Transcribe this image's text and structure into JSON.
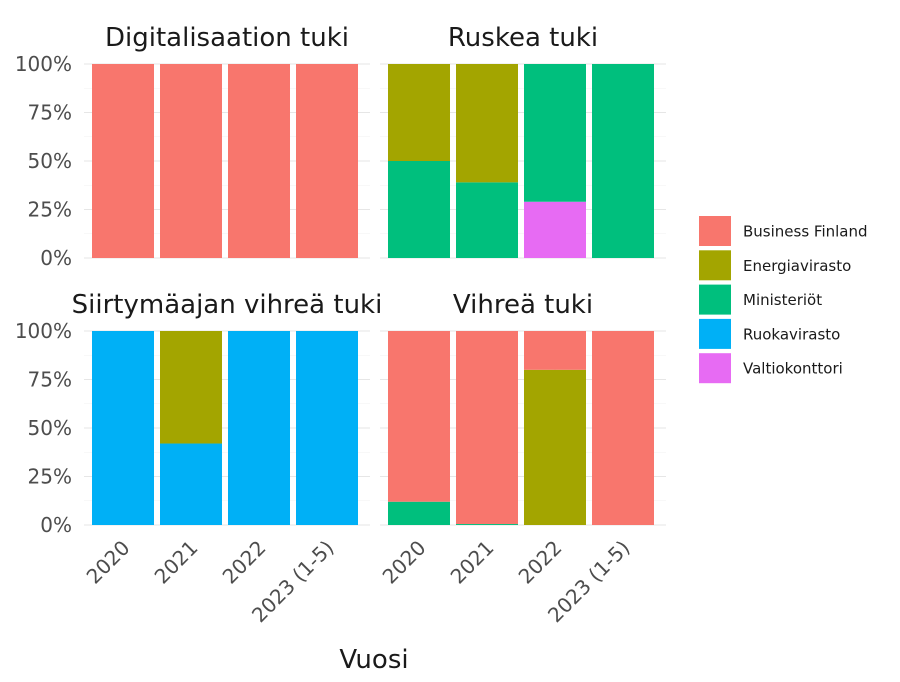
{
  "chart_data": {
    "type": "bar",
    "stacked": true,
    "normalized": true,
    "xlabel": "Vuosi",
    "ylabel": "",
    "ylim": [
      0,
      1
    ],
    "yticks": [
      "0%",
      "25%",
      "50%",
      "75%",
      "100%"
    ],
    "categories": [
      "2020",
      "2021",
      "2022",
      "2023 (1-5)"
    ],
    "legend": {
      "position": "right",
      "entries": [
        {
          "name": "Business Finland",
          "color": "#F8766D"
        },
        {
          "name": "Energiavirasto",
          "color": "#A3A500"
        },
        {
          "name": "Ministeriöt",
          "color": "#00BF7D"
        },
        {
          "name": "Ruokavirasto",
          "color": "#00B0F6"
        },
        {
          "name": "Valtiokonttori",
          "color": "#E76BF3"
        }
      ]
    },
    "panels": [
      {
        "title": "Digitalisaation tuki",
        "series": [
          {
            "name": "Business Finland",
            "values": [
              1.0,
              1.0,
              1.0,
              1.0
            ]
          },
          {
            "name": "Energiavirasto",
            "values": [
              0,
              0,
              0,
              0
            ]
          },
          {
            "name": "Ministeriöt",
            "values": [
              0,
              0,
              0,
              0
            ]
          },
          {
            "name": "Ruokavirasto",
            "values": [
              0,
              0,
              0,
              0
            ]
          },
          {
            "name": "Valtiokonttori",
            "values": [
              0,
              0,
              0,
              0
            ]
          }
        ]
      },
      {
        "title": "Ruskea tuki",
        "series": [
          {
            "name": "Business Finland",
            "values": [
              0,
              0,
              0,
              0
            ]
          },
          {
            "name": "Energiavirasto",
            "values": [
              0.5,
              0.61,
              0,
              0
            ]
          },
          {
            "name": "Ministeriöt",
            "values": [
              0.5,
              0.39,
              0.71,
              1.0
            ]
          },
          {
            "name": "Ruokavirasto",
            "values": [
              0,
              0,
              0,
              0
            ]
          },
          {
            "name": "Valtiokonttori",
            "values": [
              0,
              0,
              0.29,
              0
            ]
          }
        ]
      },
      {
        "title": "Siirtymäajan vihreä tuki",
        "series": [
          {
            "name": "Business Finland",
            "values": [
              0,
              0,
              0,
              0
            ]
          },
          {
            "name": "Energiavirasto",
            "values": [
              0,
              0.58,
              0,
              0
            ]
          },
          {
            "name": "Ministeriöt",
            "values": [
              0,
              0,
              0,
              0
            ]
          },
          {
            "name": "Ruokavirasto",
            "values": [
              1.0,
              0.42,
              1.0,
              1.0
            ]
          },
          {
            "name": "Valtiokonttori",
            "values": [
              0,
              0,
              0,
              0
            ]
          }
        ]
      },
      {
        "title": "Vihreä tuki",
        "series": [
          {
            "name": "Business Finland",
            "values": [
              0.88,
              0.995,
              0.2,
              1.0
            ]
          },
          {
            "name": "Energiavirasto",
            "values": [
              0,
              0,
              0.8,
              0
            ]
          },
          {
            "name": "Ministeriöt",
            "values": [
              0.12,
              0.005,
              0,
              0
            ]
          },
          {
            "name": "Ruokavirasto",
            "values": [
              0,
              0,
              0,
              0
            ]
          },
          {
            "name": "Valtiokonttori",
            "values": [
              0,
              0,
              0,
              0
            ]
          }
        ]
      }
    ]
  }
}
